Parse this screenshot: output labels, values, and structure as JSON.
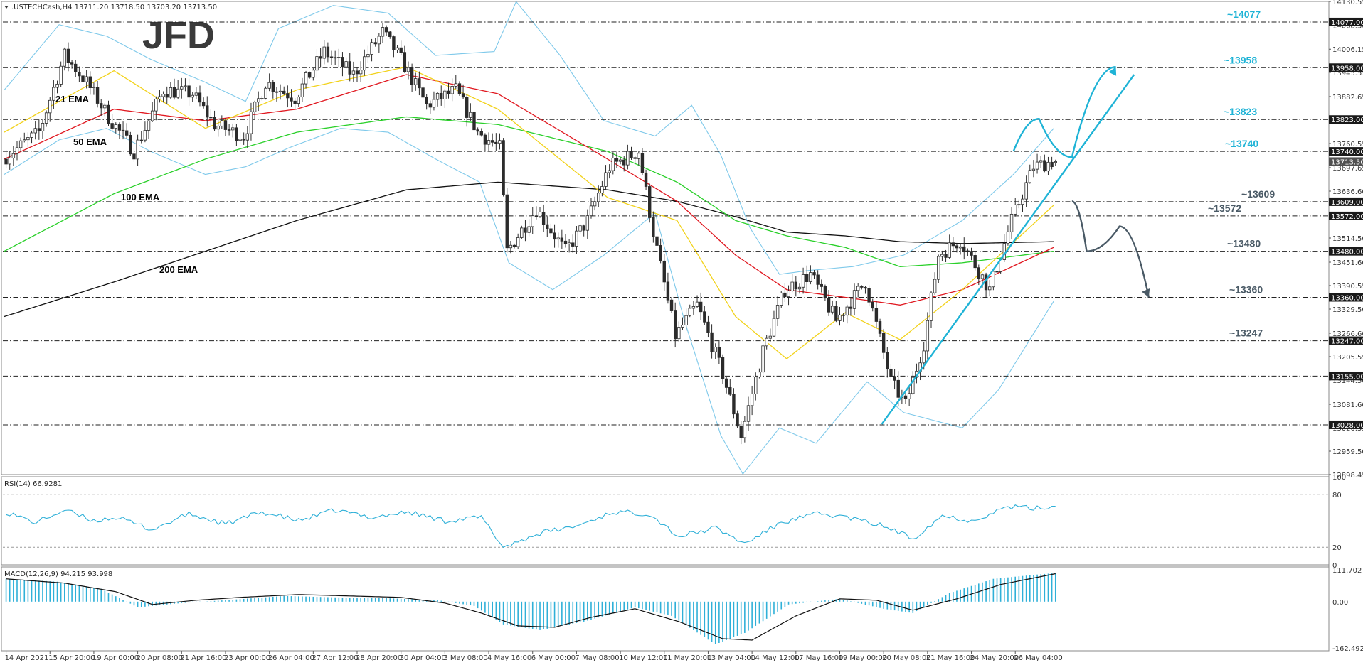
{
  "chart_data": {
    "type": "candlestick",
    "symbol_header": ".USTECHCash,H4  13711.20 13718.50 13703.20 13713.50",
    "logo": "JFD",
    "price_axis": {
      "ylim": [
        12898.45,
        14130.55
      ],
      "ticks": [
        "14130.55",
        "14068.30",
        "14006.15",
        "13945.55",
        "13882.65",
        "13821.50",
        "13760.55",
        "13697.65",
        "13636.60",
        "13575.45",
        "13514.50",
        "13451.60",
        "13390.55",
        "13329.50",
        "13266.60",
        "13205.55",
        "13144.50",
        "13081.60",
        "13020.55",
        "12959.50",
        "12898.45"
      ],
      "tick_values": [
        14130.55,
        14068.3,
        14006.15,
        13945.55,
        13882.65,
        13821.5,
        13760.55,
        13697.65,
        13636.6,
        13575.45,
        13514.5,
        13451.6,
        13390.55,
        13329.5,
        13266.6,
        13205.55,
        13144.5,
        13081.6,
        13020.55,
        12959.5,
        12898.45
      ]
    },
    "levels": [
      {
        "value": 14077,
        "axis_label": "14077.00",
        "annotation": "~14077",
        "color": "#1fb3d6"
      },
      {
        "value": 13958,
        "axis_label": "13958.00",
        "annotation": "~13958",
        "color": "#1fb3d6"
      },
      {
        "value": 13823,
        "axis_label": "13823.00",
        "annotation": "~13823",
        "color": "#1fb3d6"
      },
      {
        "value": 13740,
        "axis_label": "13740.00",
        "annotation": "~13740",
        "color": "#1fb3d6"
      },
      {
        "value": 13609,
        "axis_label": "13609.00",
        "annotation": "~13609",
        "color": "#4a5a66"
      },
      {
        "value": 13572,
        "axis_label": "13572.00",
        "annotation": "~13572",
        "color": "#4a5a66"
      },
      {
        "value": 13480,
        "axis_label": "13480.00",
        "annotation": "~13480",
        "color": "#4a5a66"
      },
      {
        "value": 13360,
        "axis_label": "13360.00",
        "annotation": "~13360",
        "color": "#4a5a66"
      },
      {
        "value": 13247,
        "axis_label": "13247.00",
        "annotation": "~13247",
        "color": "#4a5a66"
      },
      {
        "value": 13155,
        "axis_label": "13155.00",
        "annotation": "",
        "color": "#4a5a66"
      },
      {
        "value": 13028,
        "axis_label": "13028.00",
        "annotation": "",
        "color": "#4a5a66"
      }
    ],
    "current_price": {
      "value": 13713.5,
      "label": "13713.50"
    },
    "ema_labels": [
      {
        "text": "21 EMA",
        "color": "#f2d21b"
      },
      {
        "text": "50 EMA",
        "color": "#e0171f"
      },
      {
        "text": "100 EMA",
        "color": "#2ad02a"
      },
      {
        "text": "200 EMA",
        "color": "#111111"
      }
    ],
    "candles": {
      "bars": 288,
      "anchors": [
        [
          0,
          13720
        ],
        [
          10,
          13790
        ],
        [
          17,
          13990
        ],
        [
          23,
          13920
        ],
        [
          29,
          13830
        ],
        [
          36,
          13740
        ],
        [
          44,
          13900
        ],
        [
          52,
          13890
        ],
        [
          58,
          13810
        ],
        [
          66,
          13780
        ],
        [
          72,
          13920
        ],
        [
          80,
          13880
        ],
        [
          88,
          14000
        ],
        [
          96,
          13940
        ],
        [
          104,
          14050
        ],
        [
          109,
          13980
        ],
        [
          116,
          13860
        ],
        [
          124,
          13900
        ],
        [
          130,
          13790
        ],
        [
          136,
          13750
        ],
        [
          138,
          13480
        ],
        [
          146,
          13590
        ],
        [
          154,
          13480
        ],
        [
          160,
          13560
        ],
        [
          166,
          13700
        ],
        [
          174,
          13740
        ],
        [
          178,
          13530
        ],
        [
          184,
          13260
        ],
        [
          190,
          13340
        ],
        [
          197,
          13160
        ],
        [
          202,
          13000
        ],
        [
          208,
          13220
        ],
        [
          214,
          13380
        ],
        [
          221,
          13420
        ],
        [
          228,
          13300
        ],
        [
          236,
          13400
        ],
        [
          243,
          13140
        ],
        [
          247,
          13080
        ],
        [
          252,
          13240
        ],
        [
          256,
          13470
        ],
        [
          262,
          13510
        ],
        [
          270,
          13380
        ],
        [
          276,
          13560
        ],
        [
          282,
          13700
        ],
        [
          287,
          13714
        ]
      ],
      "last_ohlc": {
        "open": 13711.2,
        "high": 13718.5,
        "low": 13703.2,
        "close": 13713.5
      }
    },
    "ema": {
      "ema21": [
        [
          0,
          13790
        ],
        [
          30,
          13950
        ],
        [
          55,
          13800
        ],
        [
          80,
          13900
        ],
        [
          110,
          13960
        ],
        [
          135,
          13850
        ],
        [
          165,
          13620
        ],
        [
          184,
          13560
        ],
        [
          200,
          13310
        ],
        [
          214,
          13200
        ],
        [
          230,
          13320
        ],
        [
          245,
          13250
        ],
        [
          262,
          13380
        ],
        [
          287,
          13600
        ]
      ],
      "ema50": [
        [
          0,
          13720
        ],
        [
          30,
          13850
        ],
        [
          55,
          13820
        ],
        [
          80,
          13850
        ],
        [
          110,
          13940
        ],
        [
          135,
          13890
        ],
        [
          165,
          13720
        ],
        [
          184,
          13610
        ],
        [
          200,
          13470
        ],
        [
          214,
          13380
        ],
        [
          230,
          13360
        ],
        [
          245,
          13340
        ],
        [
          262,
          13380
        ],
        [
          287,
          13490
        ]
      ],
      "ema100": [
        [
          0,
          13480
        ],
        [
          30,
          13630
        ],
        [
          55,
          13720
        ],
        [
          80,
          13790
        ],
        [
          110,
          13830
        ],
        [
          135,
          13810
        ],
        [
          165,
          13740
        ],
        [
          184,
          13660
        ],
        [
          200,
          13560
        ],
        [
          214,
          13520
        ],
        [
          230,
          13490
        ],
        [
          245,
          13440
        ],
        [
          262,
          13450
        ],
        [
          287,
          13480
        ]
      ],
      "ema200": [
        [
          0,
          13310
        ],
        [
          30,
          13400
        ],
        [
          55,
          13480
        ],
        [
          80,
          13560
        ],
        [
          110,
          13640
        ],
        [
          135,
          13660
        ],
        [
          165,
          13640
        ],
        [
          184,
          13610
        ],
        [
          200,
          13570
        ],
        [
          214,
          13530
        ],
        [
          230,
          13520
        ],
        [
          245,
          13505
        ],
        [
          262,
          13500
        ],
        [
          287,
          13505
        ]
      ]
    },
    "bollinger": {
      "upper": [
        [
          0,
          13900
        ],
        [
          15,
          14070
        ],
        [
          28,
          14040
        ],
        [
          40,
          13980
        ],
        [
          55,
          13920
        ],
        [
          66,
          13870
        ],
        [
          75,
          14060
        ],
        [
          90,
          14120
        ],
        [
          105,
          14100
        ],
        [
          118,
          13990
        ],
        [
          134,
          14000
        ],
        [
          140,
          14130
        ],
        [
          152,
          13990
        ],
        [
          164,
          13820
        ],
        [
          178,
          13780
        ],
        [
          188,
          13860
        ],
        [
          196,
          13730
        ],
        [
          204,
          13540
        ],
        [
          212,
          13420
        ],
        [
          220,
          13430
        ],
        [
          232,
          13440
        ],
        [
          246,
          13470
        ],
        [
          262,
          13560
        ],
        [
          276,
          13680
        ],
        [
          287,
          13800
        ]
      ],
      "lower": [
        [
          0,
          13680
        ],
        [
          15,
          13770
        ],
        [
          28,
          13800
        ],
        [
          40,
          13740
        ],
        [
          55,
          13680
        ],
        [
          66,
          13700
        ],
        [
          78,
          13750
        ],
        [
          92,
          13800
        ],
        [
          105,
          13790
        ],
        [
          118,
          13720
        ],
        [
          130,
          13660
        ],
        [
          138,
          13450
        ],
        [
          150,
          13380
        ],
        [
          164,
          13470
        ],
        [
          178,
          13580
        ],
        [
          186,
          13300
        ],
        [
          196,
          13000
        ],
        [
          202,
          12900
        ],
        [
          212,
          13020
        ],
        [
          222,
          12980
        ],
        [
          236,
          13140
        ],
        [
          246,
          13060
        ],
        [
          262,
          13020
        ],
        [
          272,
          13120
        ],
        [
          287,
          13350
        ]
      ]
    },
    "projections": {
      "trendline": [
        [
          240,
          13030
        ],
        [
          309,
          13940
        ]
      ],
      "bull_path": [
        [
          276,
          13740
        ],
        [
          283,
          13825
        ],
        [
          292,
          13725
        ],
        [
          304,
          13960
        ]
      ],
      "bear_path": [
        [
          292,
          13610
        ],
        [
          296,
          13480
        ],
        [
          305,
          13545
        ],
        [
          313,
          13360
        ]
      ]
    },
    "rsi": {
      "label": "RSI(14) 66.9281",
      "period": 14,
      "last": 66.9281,
      "levels": [
        80,
        20
      ],
      "axis_ticks": [
        "100",
        "80",
        "20",
        "0"
      ],
      "tick_values": [
        100,
        80,
        20,
        0
      ],
      "anchors": [
        [
          0,
          60
        ],
        [
          8,
          48
        ],
        [
          16,
          62
        ],
        [
          24,
          50
        ],
        [
          30,
          54
        ],
        [
          40,
          40
        ],
        [
          50,
          58
        ],
        [
          60,
          46
        ],
        [
          70,
          60
        ],
        [
          80,
          50
        ],
        [
          90,
          62
        ],
        [
          100,
          54
        ],
        [
          110,
          60
        ],
        [
          120,
          50
        ],
        [
          130,
          54
        ],
        [
          136,
          20
        ],
        [
          146,
          36
        ],
        [
          156,
          44
        ],
        [
          166,
          60
        ],
        [
          176,
          58
        ],
        [
          184,
          32
        ],
        [
          194,
          42
        ],
        [
          202,
          24
        ],
        [
          212,
          48
        ],
        [
          222,
          58
        ],
        [
          230,
          54
        ],
        [
          240,
          44
        ],
        [
          248,
          30
        ],
        [
          256,
          56
        ],
        [
          264,
          50
        ],
        [
          274,
          66
        ],
        [
          282,
          64
        ],
        [
          287,
          67
        ]
      ]
    },
    "macd": {
      "label": "MACD(12,26,9) 94.215 93.998",
      "params": [
        12,
        26,
        9
      ],
      "main": 94.215,
      "signal": 93.998,
      "ylim": [
        -162.492,
        111.702
      ],
      "axis_ticks": [
        "111.702",
        "0.00",
        "-162.492"
      ],
      "tick_values": [
        111.702,
        0,
        -162.492
      ],
      "hist": [
        [
          0,
          80
        ],
        [
          14,
          70
        ],
        [
          26,
          45
        ],
        [
          36,
          -20
        ],
        [
          48,
          -5
        ],
        [
          60,
          5
        ],
        [
          76,
          20
        ],
        [
          90,
          15
        ],
        [
          104,
          12
        ],
        [
          118,
          5
        ],
        [
          128,
          -15
        ],
        [
          136,
          -80
        ],
        [
          146,
          -100
        ],
        [
          158,
          -70
        ],
        [
          172,
          -20
        ],
        [
          182,
          -50
        ],
        [
          194,
          -150
        ],
        [
          202,
          -110
        ],
        [
          214,
          -10
        ],
        [
          228,
          10
        ],
        [
          240,
          -25
        ],
        [
          248,
          -40
        ],
        [
          258,
          30
        ],
        [
          270,
          80
        ],
        [
          282,
          95
        ],
        [
          287,
          100
        ]
      ],
      "signal_line": [
        [
          0,
          80
        ],
        [
          16,
          65
        ],
        [
          30,
          35
        ],
        [
          40,
          -10
        ],
        [
          52,
          5
        ],
        [
          64,
          15
        ],
        [
          80,
          25
        ],
        [
          94,
          20
        ],
        [
          108,
          15
        ],
        [
          120,
          -5
        ],
        [
          130,
          -40
        ],
        [
          140,
          -85
        ],
        [
          150,
          -90
        ],
        [
          160,
          -55
        ],
        [
          172,
          -25
        ],
        [
          184,
          -70
        ],
        [
          196,
          -130
        ],
        [
          204,
          -135
        ],
        [
          216,
          -50
        ],
        [
          228,
          10
        ],
        [
          238,
          5
        ],
        [
          248,
          -30
        ],
        [
          260,
          10
        ],
        [
          272,
          60
        ],
        [
          287,
          98
        ]
      ]
    },
    "time_axis": [
      {
        "bar": 0,
        "label": "14 Apr 2021"
      },
      {
        "bar": 12,
        "label": "15 Apr 20:00"
      },
      {
        "bar": 24,
        "label": "19 Apr 00:00"
      },
      {
        "bar": 36,
        "label": "20 Apr 08:00"
      },
      {
        "bar": 48,
        "label": "21 Apr 16:00"
      },
      {
        "bar": 60,
        "label": "23 Apr 00:00"
      },
      {
        "bar": 72,
        "label": "26 Apr 04:00"
      },
      {
        "bar": 84,
        "label": "27 Apr 12:00"
      },
      {
        "bar": 96,
        "label": "28 Apr 20:00"
      },
      {
        "bar": 108,
        "label": "30 Apr 04:00"
      },
      {
        "bar": 120,
        "label": "3 May 08:00"
      },
      {
        "bar": 132,
        "label": "4 May 16:00"
      },
      {
        "bar": 144,
        "label": "6 May 00:00"
      },
      {
        "bar": 156,
        "label": "7 May 08:00"
      },
      {
        "bar": 168,
        "label": "10 May 12:00"
      },
      {
        "bar": 180,
        "label": "11 May 20:00"
      },
      {
        "bar": 192,
        "label": "13 May 04:00"
      },
      {
        "bar": 204,
        "label": "14 May 12:00"
      },
      {
        "bar": 216,
        "label": "17 May 16:00"
      },
      {
        "bar": 228,
        "label": "19 May 00:00"
      },
      {
        "bar": 240,
        "label": "20 May 08:00"
      },
      {
        "bar": 252,
        "label": "21 May 16:00"
      },
      {
        "bar": 264,
        "label": "24 May 20:00"
      },
      {
        "bar": 276,
        "label": "26 May 04:00"
      }
    ],
    "colors": {
      "candle_up": "#ffffff",
      "candle_down": "#2b2b2b",
      "bollinger": "#7fc9ea",
      "rsi_line": "#2fb0d8",
      "macd_hist": "#2fb0d8",
      "macd_signal": "#111111",
      "bull_projection": "#1fb3d6",
      "bear_projection": "#4a5a66"
    }
  }
}
